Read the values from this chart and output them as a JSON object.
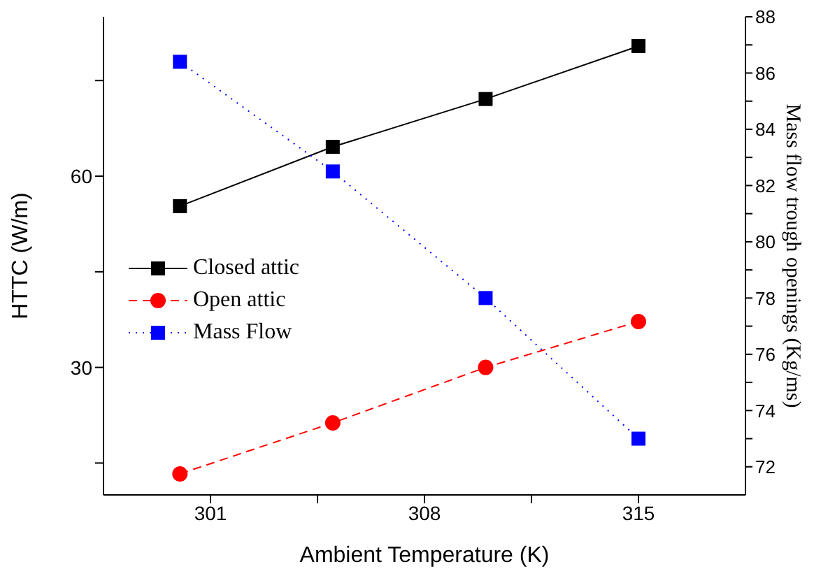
{
  "chart_data": {
    "type": "line",
    "xlabel": "Ambient Temperature (K)",
    "ylabel": "HTTC (W/m)",
    "y2label": "Mass flow trough openings (Kg/ms)",
    "x": [
      300,
      305,
      310,
      315
    ],
    "xlim": [
      297.5,
      318.5
    ],
    "xticks": [
      301,
      {
        "value": 304.5,
        "label": null
      },
      308,
      {
        "value": 311.5,
        "label": null
      },
      315
    ],
    "ylim": [
      10,
      85
    ],
    "yticks": [
      {
        "value": 15,
        "label": null
      },
      30,
      {
        "value": 45,
        "label": null
      },
      60,
      {
        "value": 75,
        "label": null
      }
    ],
    "y2lim": [
      71,
      88
    ],
    "y2ticks": [
      72,
      {
        "value": 73,
        "label": null
      },
      74,
      {
        "value": 75,
        "label": null
      },
      76,
      {
        "value": 77,
        "label": null
      },
      78,
      {
        "value": 79,
        "label": null
      },
      80,
      {
        "value": 81,
        "label": null
      },
      82,
      {
        "value": 83,
        "label": null
      },
      84,
      {
        "value": 85,
        "label": null
      },
      86,
      {
        "value": 87,
        "label": null
      },
      88
    ],
    "series": [
      {
        "name": "Closed attic",
        "color": "#000000",
        "values": [
          55.3,
          64.6,
          72.1,
          80.4
        ],
        "marker": "square",
        "line_style": "solid"
      },
      {
        "name": "Open attic",
        "color": "#ff0000",
        "values": [
          13.3,
          21.3,
          30,
          37.2
        ],
        "marker": "circle",
        "line_style": "dashed"
      },
      {
        "name": "Mass Flow",
        "color": "#0000ff",
        "values": [
          86.4,
          82.5,
          78,
          73
        ],
        "marker": "square",
        "line_style": "dotted",
        "axis": "y2"
      }
    ],
    "grid": false,
    "legend": "left"
  }
}
